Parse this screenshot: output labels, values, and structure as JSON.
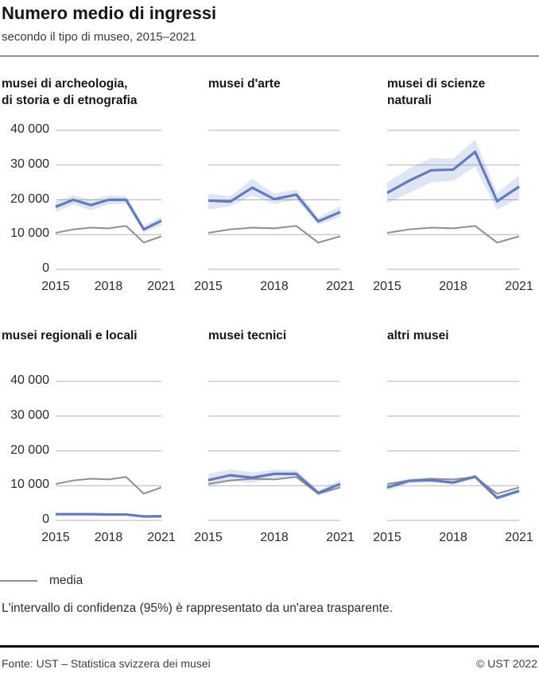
{
  "header": {
    "title": "Numero medio di ingressi",
    "subtitle": "secondo il tipo di museo, 2015–2021"
  },
  "legend": {
    "media_label": "media"
  },
  "note": "L'intervallo di confidenza (95%) è rappresentato da un'area trasparente.",
  "footer": {
    "source": "Fonte: UST – Statistica svizzera dei musei",
    "copyright": "© UST 2022"
  },
  "colors": {
    "line_blue": "#5f7bc3",
    "band_blue": "#5f7bc3",
    "band_opacity": 0.2,
    "media_gray": "#8d8d8d",
    "grid_gray": "#b4b4b4",
    "text_dark": "#2b2b2b"
  },
  "chart_data": {
    "type": "line",
    "title": "Numero medio di ingressi",
    "subtitle": "secondo il tipo di museo, 2015–2021",
    "x": [
      2015,
      2016,
      2017,
      2018,
      2019,
      2020,
      2021
    ],
    "x_tick_labels": [
      "2015",
      "2018",
      "2021"
    ],
    "ylim": [
      0,
      40000
    ],
    "grid": true,
    "y_ticks": [
      {
        "value": 40000,
        "label": "40 000"
      },
      {
        "value": 30000,
        "label": "30 000"
      },
      {
        "value": 20000,
        "label": "20 000"
      },
      {
        "value": 10000,
        "label": "10 000"
      },
      {
        "value": 0,
        "label": "0"
      }
    ],
    "legend_entries": [
      {
        "label": "media",
        "color": "#8d8d8d",
        "position": "bottom-left"
      }
    ],
    "ci_note": "intervallo di confidenza 95% come area trasparente",
    "media_series": {
      "name": "media",
      "values": [
        10500,
        11500,
        12000,
        11800,
        12500,
        7700,
        9500
      ]
    },
    "panels": [
      {
        "title": "musei di archeologia,\ndi storia e di etnografia",
        "values": [
          18000,
          20000,
          18500,
          20000,
          20000,
          11500,
          14000
        ],
        "ci_lower": [
          16400,
          18700,
          17000,
          18700,
          18900,
          10600,
          12700
        ],
        "ci_upper": [
          19600,
          21300,
          20100,
          21300,
          21100,
          12500,
          15300
        ]
      },
      {
        "title": "musei d'arte",
        "values": [
          19800,
          19500,
          23500,
          20200,
          21500,
          13800,
          16500
        ],
        "ci_lower": [
          17200,
          18200,
          21200,
          18800,
          20000,
          12800,
          15000
        ],
        "ci_upper": [
          21800,
          21000,
          26000,
          21800,
          23000,
          14900,
          18200
        ]
      },
      {
        "title": "musei di scienze\nnaturali",
        "values": [
          22000,
          25500,
          28500,
          28700,
          33800,
          19600,
          23800
        ],
        "ci_lower": [
          19000,
          22000,
          25000,
          25500,
          29500,
          17200,
          20500
        ],
        "ci_upper": [
          25000,
          29000,
          32000,
          31800,
          37300,
          22000,
          27000
        ]
      },
      {
        "title": "musei regionali e locali",
        "values": [
          1800,
          1800,
          1800,
          1700,
          1700,
          1150,
          1200
        ],
        "ci_lower": [
          1500,
          1550,
          1550,
          1450,
          1450,
          950,
          1000
        ],
        "ci_upper": [
          2100,
          2050,
          2050,
          1950,
          1950,
          1350,
          1400
        ]
      },
      {
        "title": "musei tecnici",
        "values": [
          11600,
          13000,
          12300,
          13400,
          13400,
          7900,
          10500
        ],
        "ci_lower": [
          9800,
          11300,
          10800,
          12200,
          12300,
          7100,
          9300
        ],
        "ci_upper": [
          13400,
          14700,
          13800,
          14600,
          14500,
          8700,
          11700
        ]
      },
      {
        "title": "altri musei",
        "values": [
          9500,
          11400,
          11600,
          10900,
          12600,
          6500,
          8500
        ],
        "ci_lower": [
          8600,
          10700,
          10900,
          10300,
          12000,
          5900,
          7800
        ],
        "ci_upper": [
          10400,
          12100,
          12300,
          11500,
          13200,
          7100,
          9200
        ]
      }
    ]
  }
}
